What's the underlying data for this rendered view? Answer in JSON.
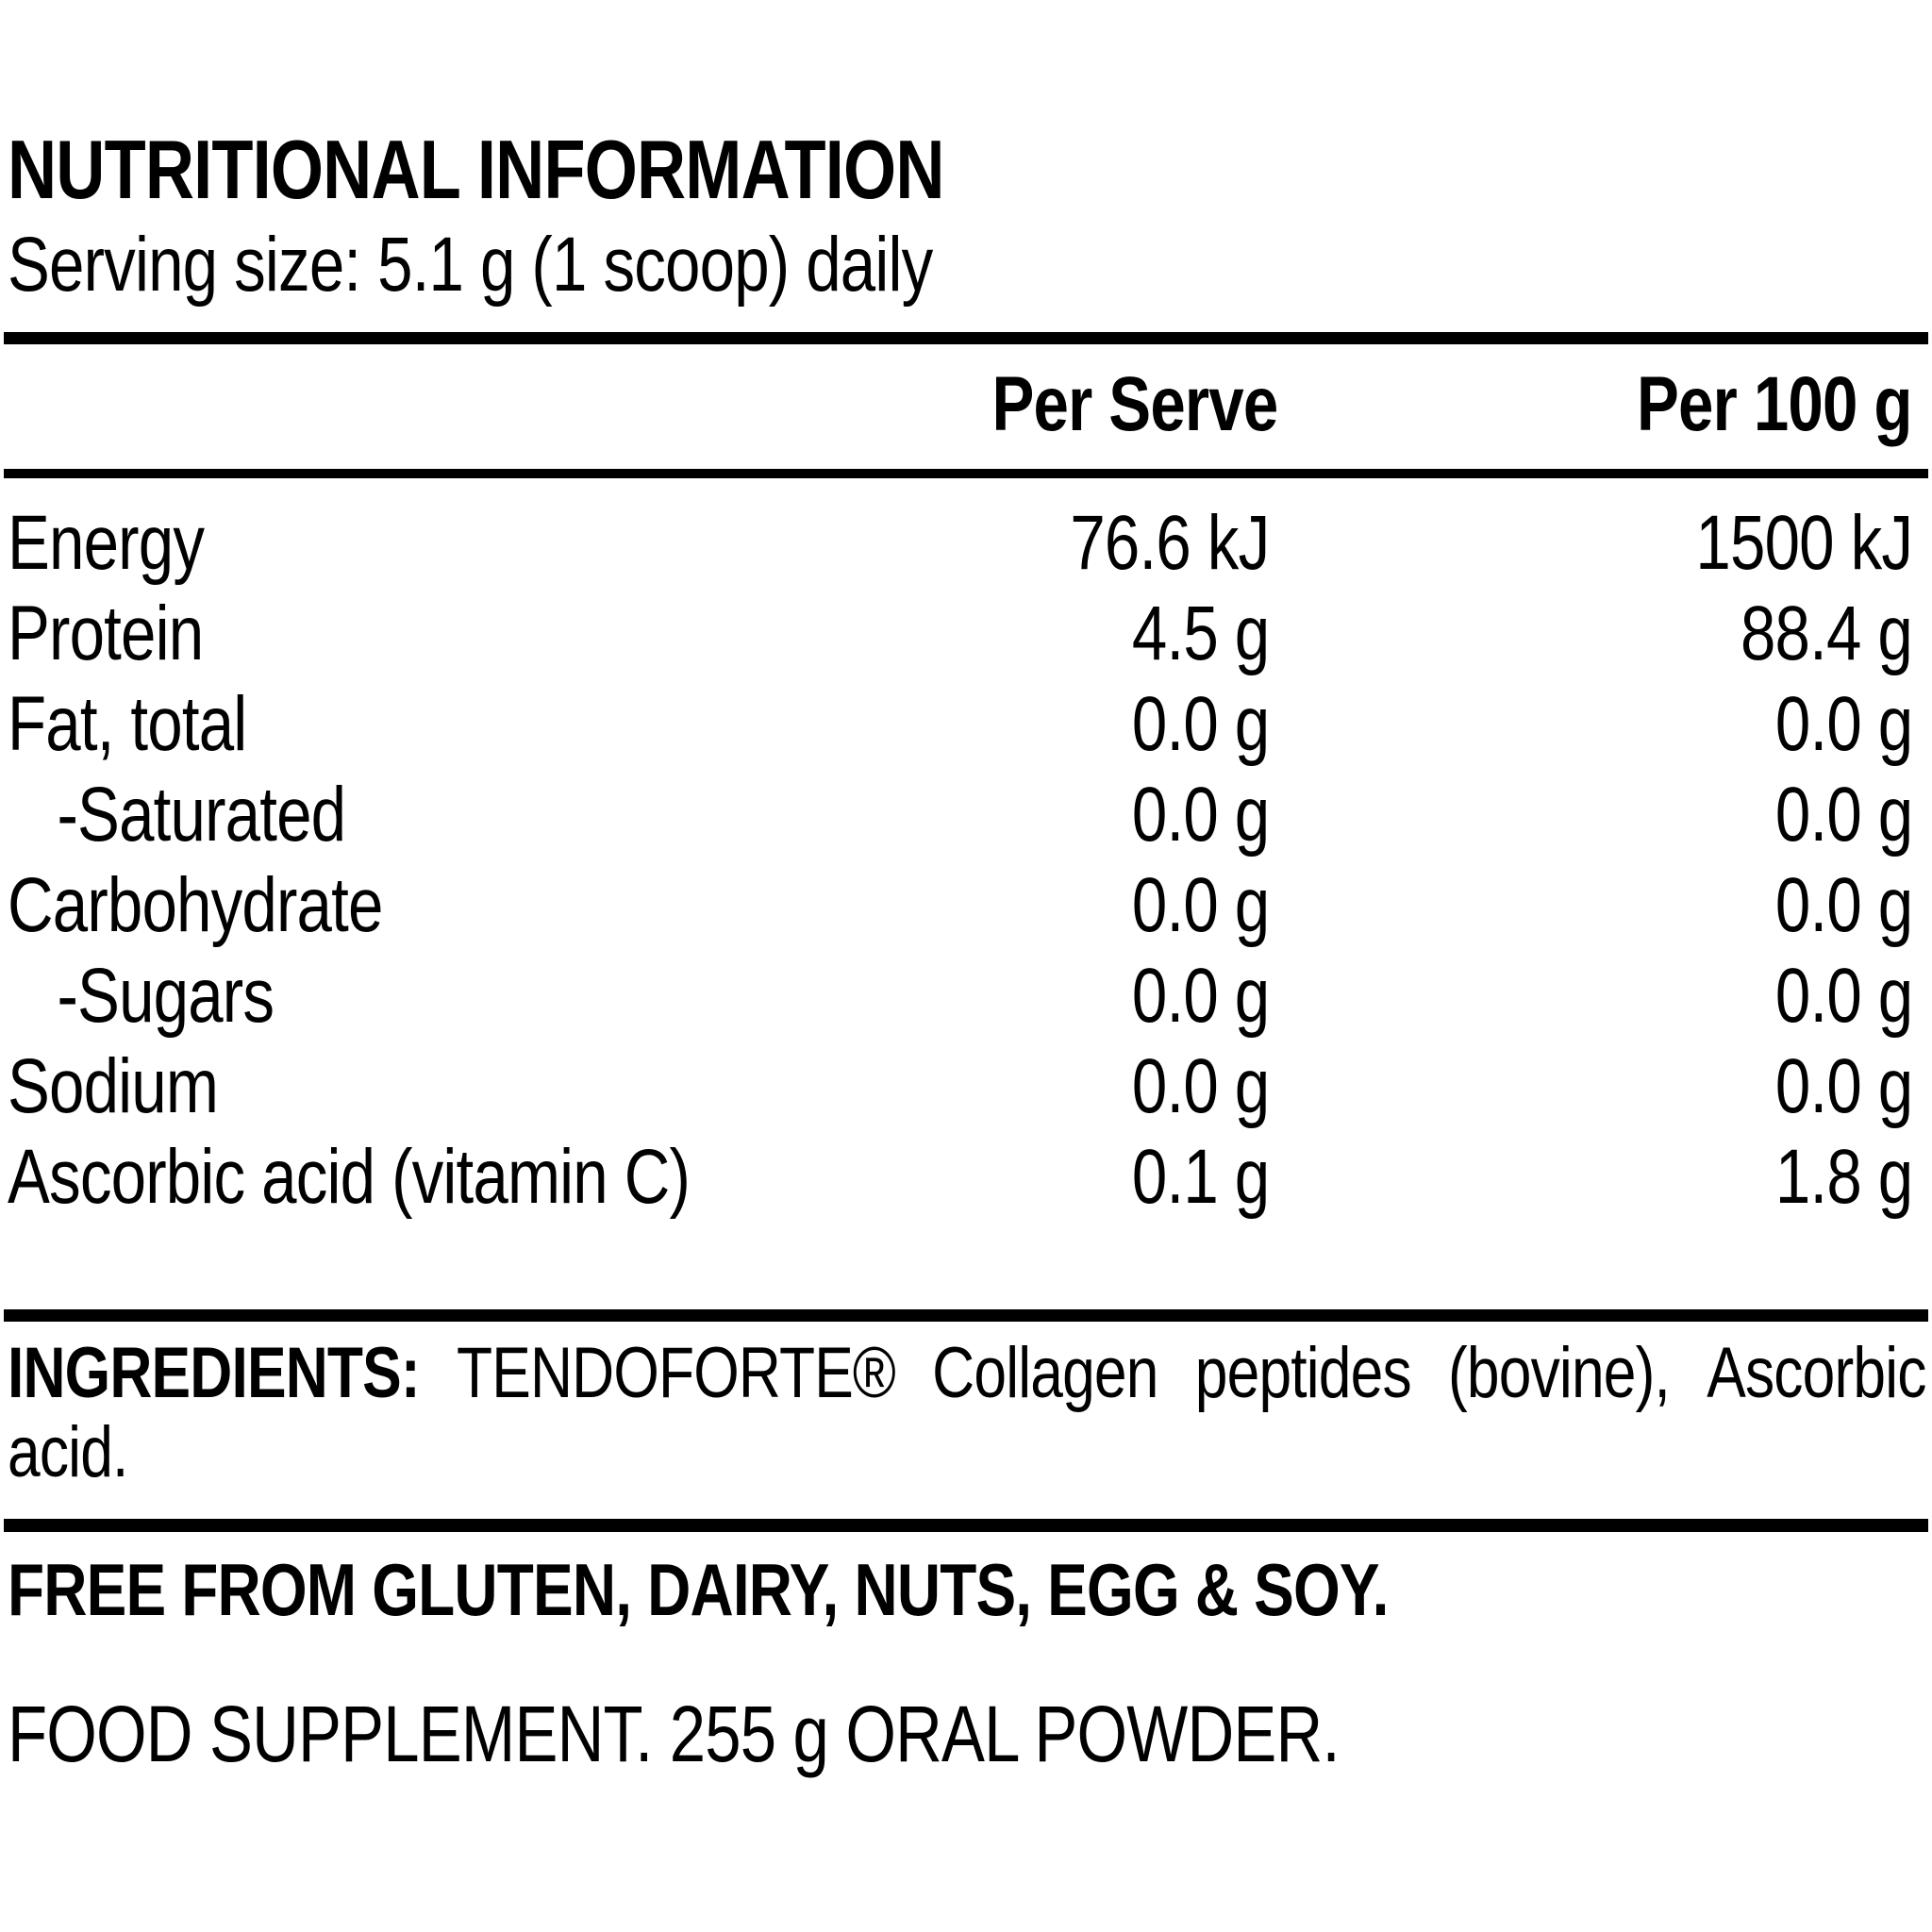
{
  "title": "NUTRITIONAL INFORMATION",
  "serving_line": "Serving size: 5.1 g (1 scoop) daily",
  "table": {
    "col1_header": "Per Serve",
    "col2_header": "Per 100 g",
    "rows": [
      {
        "name": "Energy",
        "indent": false,
        "per_serve": "76.6 kJ",
        "per_100g": "1500 kJ"
      },
      {
        "name": "Protein",
        "indent": false,
        "per_serve": "4.5 g",
        "per_100g": "88.4 g"
      },
      {
        "name": "Fat, total",
        "indent": false,
        "per_serve": "0.0 g",
        "per_100g": "0.0 g"
      },
      {
        "name": "-Saturated",
        "indent": true,
        "per_serve": "0.0 g",
        "per_100g": "0.0 g"
      },
      {
        "name": "Carbohydrate",
        "indent": false,
        "per_serve": "0.0 g",
        "per_100g": "0.0 g"
      },
      {
        "name": "-Sugars",
        "indent": true,
        "per_serve": "0.0 g",
        "per_100g": "0.0 g"
      },
      {
        "name": "Sodium",
        "indent": false,
        "per_serve": "0.0 g",
        "per_100g": "0.0 g"
      },
      {
        "name": "Ascorbic acid (vitamin C)",
        "indent": false,
        "per_serve": "0.1 g",
        "per_100g": "1.8 g"
      }
    ]
  },
  "ingredients": {
    "heading": "INGREDIENTS:",
    "line1_words": [
      "TENDOFORTE®",
      "Collagen",
      "peptides",
      "(bovine),",
      "Ascorbic"
    ],
    "line2": "acid."
  },
  "free_from": "FREE FROM GLUTEN, DAIRY, NUTS, EGG & SOY.",
  "supplement": "FOOD SUPPLEMENT. 255 g ORAL POWDER.",
  "colors": {
    "text": "#000000",
    "background": "#ffffff"
  }
}
